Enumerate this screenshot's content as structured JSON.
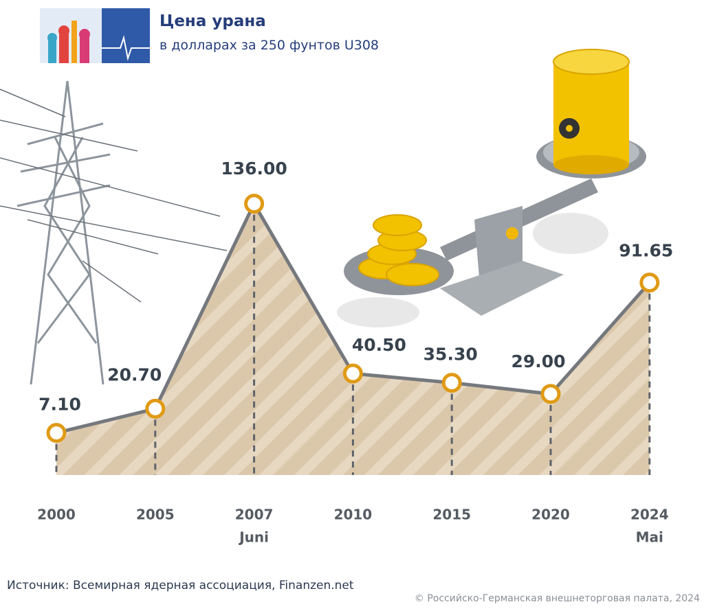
{
  "chart_data": {
    "type": "area",
    "title": "Цена урана",
    "subtitle": "в долларах за 250 фунтов U308",
    "categories": [
      "2000",
      "2005",
      "2007",
      "2010",
      "2015",
      "2020",
      "2024"
    ],
    "category_notes": [
      null,
      null,
      "Juni",
      null,
      null,
      null,
      "Mai"
    ],
    "values": [
      7.1,
      20.7,
      136,
      40.5,
      35.3,
      29,
      91.65
    ],
    "value_labels": [
      "7.10",
      "20.70",
      "136.00",
      "40.50",
      "35.30",
      "29.00",
      "91.65"
    ],
    "line_color": "#75787d",
    "marker_color": "#e09a14",
    "fill_color": "#dbc8ab",
    "source": "Источник: Всемирная ядерная ассоциация, Finanzen.net",
    "copyright": "© Российско-Германская внешнеторговая палата, 2024"
  }
}
